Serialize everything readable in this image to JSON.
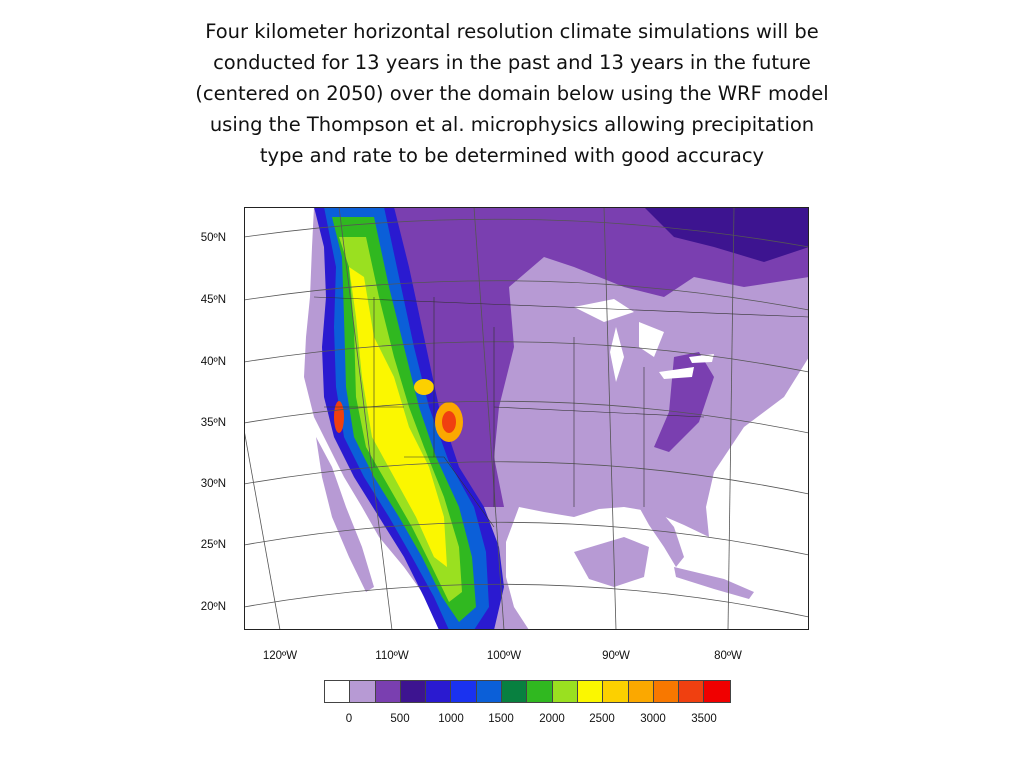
{
  "slide": {
    "title_lines": [
      "Four kilometer horizontal resolution climate simulations will be",
      "conducted for 13 years in the past and 13 years in the future",
      "(centered on 2050) over the domain below using the WRF model",
      "using the Thompson et al. microphysics allowing precipitation",
      "type and rate to be determined with good accuracy"
    ]
  },
  "map": {
    "lat_labels": [
      "50ºN",
      "45ºN",
      "40ºN",
      "35ºN",
      "30ºN",
      "25ºN",
      "20ºN"
    ],
    "lon_labels": [
      "120ºW",
      "110ºW",
      "100ºW",
      "90ºW",
      "80ºW"
    ]
  },
  "colorbar": {
    "colors": [
      "#ffffff",
      "#b79ad4",
      "#7a3fb0",
      "#3d1490",
      "#2a1ad0",
      "#1a32f0",
      "#0b5fd8",
      "#088040",
      "#30b820",
      "#9ae020",
      "#fbf700",
      "#fcd000",
      "#fba800",
      "#f87800",
      "#f04010",
      "#f00000"
    ],
    "ticks": [
      "0",
      "500",
      "1000",
      "1500",
      "2000",
      "2500",
      "3000",
      "3500"
    ]
  }
}
